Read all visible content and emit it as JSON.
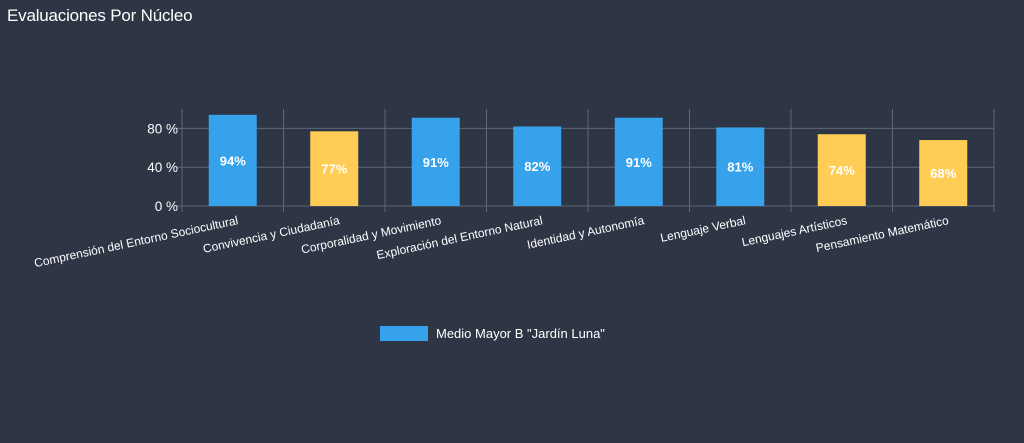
{
  "page_title": "Evaluaciones Por Núcleo",
  "colors": {
    "background": "#2e3545",
    "grid": "#5f6778",
    "high": "#36a2eb",
    "mid": "#ffcd56"
  },
  "chart_data": {
    "type": "bar",
    "title": "Evaluaciones Por Núcleo",
    "categories": [
      "Comprensión del Entorno Sociocultural",
      "Convivencia y Ciudadanía",
      "Corporalidad y Movimiento",
      "Exploración del Entorno Natural",
      "Identidad y Autonomía",
      "Lenguaje Verbal",
      "Lenguajes Artísticos",
      "Pensamiento Matemático"
    ],
    "series": [
      {
        "name": "Medio Mayor B \"Jardín Luna\"",
        "values": [
          94,
          77,
          91,
          82,
          91,
          81,
          74,
          68
        ],
        "labels": [
          "94%",
          "77%",
          "91%",
          "82%",
          "91%",
          "81%",
          "74%",
          "68%"
        ],
        "bar_colors": [
          "#36a2eb",
          "#ffcd56",
          "#36a2eb",
          "#36a2eb",
          "#36a2eb",
          "#36a2eb",
          "#ffcd56",
          "#ffcd56"
        ]
      }
    ],
    "ylim": [
      0,
      100
    ],
    "yticks": [
      0,
      40,
      80
    ],
    "ytick_labels": [
      "0 %",
      "40 %",
      "80 %"
    ],
    "xlabel": "",
    "ylabel": "",
    "grid": true,
    "legend_position": "bottom"
  },
  "legend": {
    "label": "Medio Mayor B \"Jardín Luna\"",
    "color": "#36a2eb"
  }
}
